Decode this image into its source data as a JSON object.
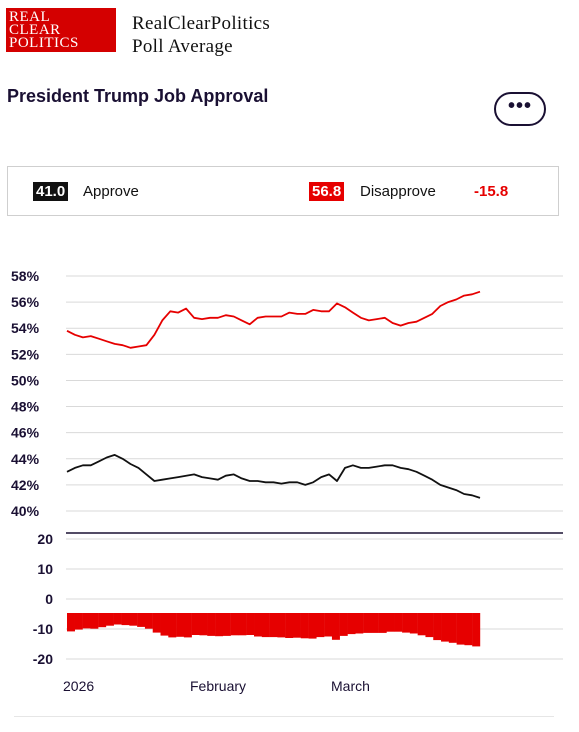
{
  "header": {
    "logo_lines": [
      "REAL",
      "CLEAR",
      "POLITICS"
    ],
    "brand_line1": "RealClearPolitics",
    "brand_line2": "Poll Average"
  },
  "page_title": "President Trump Job Approval",
  "more_button_label": "•••",
  "legend": {
    "approve_value": "41.0",
    "approve_label": "Approve",
    "disapprove_value": "56.8",
    "disapprove_label": "Disapprove",
    "spread": "-15.8"
  },
  "colors": {
    "approve": "#111111",
    "disapprove": "#e60000",
    "grid": "#d9d9d9"
  },
  "chart_data": {
    "type": "line",
    "x_labels": [
      "2026",
      "February",
      "March"
    ],
    "top_panel": {
      "y_ticks": [
        "58%",
        "56%",
        "54%",
        "52%",
        "50%",
        "48%",
        "46%",
        "44%",
        "42%",
        "40%"
      ],
      "ylim": [
        40,
        58
      ],
      "series": [
        {
          "name": "Disapprove",
          "values": [
            53.8,
            53.5,
            53.3,
            53.4,
            53.2,
            53.0,
            52.8,
            52.7,
            52.5,
            52.6,
            52.7,
            53.5,
            54.6,
            55.3,
            55.2,
            55.5,
            54.8,
            54.7,
            54.8,
            54.8,
            55.0,
            54.9,
            54.6,
            54.3,
            54.8,
            54.9,
            54.9,
            54.9,
            55.2,
            55.1,
            55.1,
            55.4,
            55.3,
            55.3,
            55.9,
            55.6,
            55.2,
            54.8,
            54.6,
            54.7,
            54.8,
            54.4,
            54.2,
            54.4,
            54.5,
            54.8,
            55.1,
            55.7,
            56.0,
            56.2,
            56.5,
            56.6,
            56.8
          ]
        },
        {
          "name": "Approve",
          "values": [
            43.0,
            43.3,
            43.5,
            43.5,
            43.8,
            44.1,
            44.3,
            44.0,
            43.6,
            43.3,
            42.8,
            42.3,
            42.4,
            42.5,
            42.6,
            42.7,
            42.8,
            42.6,
            42.5,
            42.4,
            42.7,
            42.8,
            42.5,
            42.3,
            42.3,
            42.2,
            42.2,
            42.1,
            42.2,
            42.2,
            42.0,
            42.2,
            42.6,
            42.8,
            42.3,
            43.3,
            43.5,
            43.3,
            43.3,
            43.4,
            43.5,
            43.5,
            43.3,
            43.2,
            43.0,
            42.7,
            42.4,
            42.0,
            41.8,
            41.6,
            41.3,
            41.2,
            41.0
          ]
        }
      ]
    },
    "bottom_panel": {
      "y_ticks": [
        "20",
        "10",
        "0",
        "-10",
        "-20"
      ],
      "ylim": [
        -20,
        20
      ],
      "series": [
        {
          "name": "Spread",
          "values": [
            -10.8,
            -10.2,
            -9.8,
            -9.9,
            -9.4,
            -8.9,
            -8.5,
            -8.7,
            -8.9,
            -9.3,
            -9.9,
            -11.2,
            -12.2,
            -12.8,
            -12.6,
            -12.8,
            -12.0,
            -12.1,
            -12.3,
            -12.4,
            -12.3,
            -12.1,
            -12.1,
            -12.0,
            -12.5,
            -12.7,
            -12.7,
            -12.8,
            -13.0,
            -12.9,
            -13.1,
            -13.2,
            -12.7,
            -12.5,
            -13.6,
            -12.3,
            -11.7,
            -11.5,
            -11.3,
            -11.3,
            -11.3,
            -10.9,
            -10.9,
            -11.2,
            -11.5,
            -12.1,
            -12.7,
            -13.7,
            -14.2,
            -14.6,
            -15.2,
            -15.4,
            -15.8
          ]
        }
      ]
    }
  }
}
